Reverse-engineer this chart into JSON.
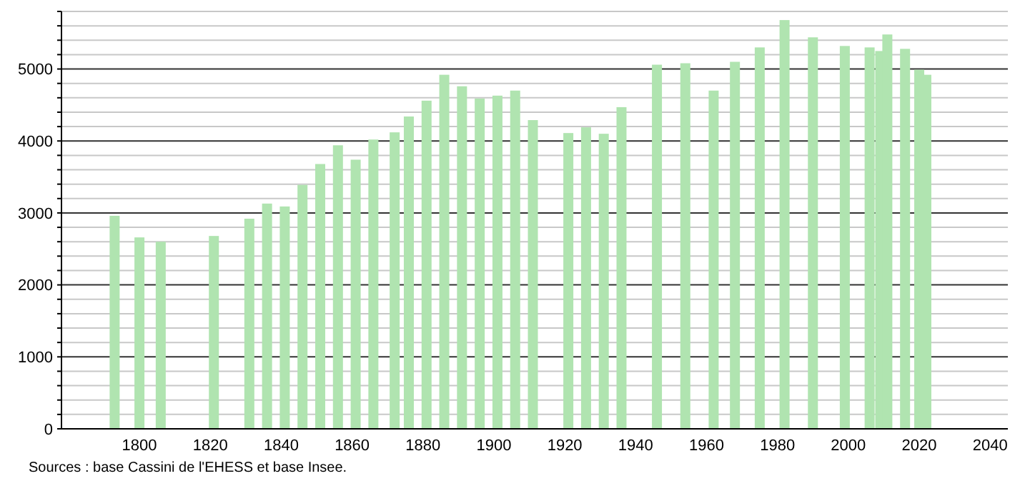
{
  "chart_data": {
    "type": "bar",
    "x": [
      1793,
      1800,
      1806,
      1821,
      1831,
      1836,
      1841,
      1846,
      1851,
      1856,
      1861,
      1866,
      1872,
      1876,
      1881,
      1886,
      1891,
      1896,
      1901,
      1906,
      1911,
      1921,
      1926,
      1931,
      1936,
      1946,
      1954,
      1962,
      1968,
      1975,
      1982,
      1990,
      1999,
      2006,
      2009,
      2011,
      2016,
      2020,
      2022
    ],
    "values": [
      2960,
      2660,
      2600,
      2680,
      2920,
      3130,
      3090,
      3390,
      3680,
      3940,
      3740,
      4020,
      4120,
      4340,
      4560,
      4920,
      4760,
      4590,
      4630,
      4700,
      4290,
      4110,
      4190,
      4100,
      4470,
      5060,
      5080,
      4700,
      5100,
      5300,
      5680,
      5440,
      5320,
      5300,
      5250,
      5480,
      5280,
      4990,
      4920
    ],
    "color": "#b0e4b0",
    "xlim": [
      1778,
      2045
    ],
    "xticks": [
      1800,
      1820,
      1840,
      1860,
      1880,
      1900,
      1920,
      1940,
      1960,
      1980,
      2000,
      2020,
      2040
    ],
    "ylim": [
      0,
      5800
    ],
    "yticks": [
      0,
      {
        "value": 200,
        "label": null
      },
      {
        "value": 400,
        "label": null
      },
      {
        "value": 600,
        "label": null
      },
      {
        "value": 800,
        "label": null
      },
      1000,
      {
        "value": 1200,
        "label": null
      },
      {
        "value": 1400,
        "label": null
      },
      {
        "value": 1600,
        "label": null
      },
      {
        "value": 1800,
        "label": null
      },
      2000,
      {
        "value": 2200,
        "label": null
      },
      {
        "value": 2400,
        "label": null
      },
      {
        "value": 2600,
        "label": null
      },
      {
        "value": 2800,
        "label": null
      },
      3000,
      {
        "value": 3200,
        "label": null
      },
      {
        "value": 3400,
        "label": null
      },
      {
        "value": 3600,
        "label": null
      },
      {
        "value": 3800,
        "label": null
      },
      4000,
      {
        "value": 4200,
        "label": null
      },
      {
        "value": 4400,
        "label": null
      },
      {
        "value": 4600,
        "label": null
      },
      {
        "value": 4800,
        "label": null
      },
      5000,
      {
        "value": 5200,
        "label": null
      },
      {
        "value": 5400,
        "label": null
      },
      {
        "value": 5600,
        "label": null
      },
      {
        "value": 5800,
        "label": null
      }
    ],
    "grid": true,
    "annotations": [
      "Sources : base Cassini de l'EHESS et base Insee."
    ]
  }
}
